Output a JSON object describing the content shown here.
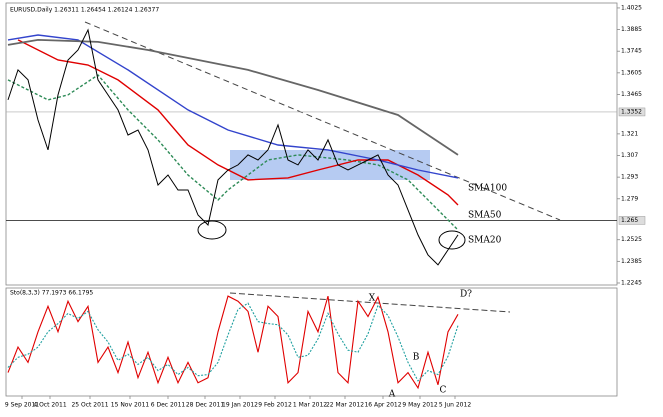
{
  "chart_data": [
    {
      "type": "line",
      "title": "EURUSD,Daily 1.26311 1.26454 1.26124 1.26377",
      "xlim": [
        0,
        60.9
      ],
      "ylim": [
        1.2232,
        1.4044
      ],
      "yticks": [
        1.4025,
        1.3885,
        1.3745,
        1.3605,
        1.3465,
        1.321,
        1.307,
        1.293,
        1.279,
        1.2525,
        1.2385,
        1.2245
      ],
      "levels": [
        1.3352,
        1.265
      ],
      "xticks": [
        {
          "value": 1.4,
          "label": "9 Sep 2011"
        },
        {
          "value": 4.2,
          "label": "4 Oct 2011"
        },
        {
          "value": 8.2,
          "label": "25 Oct 2011"
        },
        {
          "value": 12.2,
          "label": "15 Nov 2011"
        },
        {
          "value": 16,
          "label": "6 Dec 2011"
        },
        {
          "value": 19.7,
          "label": "28 Dec 2011"
        },
        {
          "value": 23.2,
          "label": "19 Jan 2012"
        },
        {
          "value": 26.7,
          "label": "9 Feb 2012"
        },
        {
          "value": 30.2,
          "label": "1 Mar 2012"
        },
        {
          "value": 33.7,
          "label": "22 Mar 2012"
        },
        {
          "value": 37.5,
          "label": "16 Apr 2012"
        },
        {
          "value": 41.2,
          "label": "9 May 2012"
        },
        {
          "value": 44.7,
          "label": "5 Jun 2012"
        }
      ],
      "price": {
        "color": "#000000",
        "values": [
          1.343,
          1.3624,
          1.356,
          1.33,
          1.3106,
          1.3462,
          1.3688,
          1.3753,
          1.3883,
          1.3559,
          1.3462,
          1.3365,
          1.3203,
          1.3235,
          1.3106,
          1.2879,
          1.2944,
          1.2847,
          1.2847,
          1.2685,
          1.262,
          1.2912,
          1.2976,
          1.3009,
          1.3074,
          1.3041,
          1.3106,
          1.3268,
          1.3041,
          1.3009,
          1.3106,
          1.3041,
          1.3171,
          1.3009,
          1.2976,
          1.3009,
          1.3041,
          1.3074,
          1.2944,
          1.2879,
          1.2718,
          1.2556,
          1.2426,
          1.2362,
          1.2459,
          1.2556
        ]
      },
      "series": [
        {
          "name": "SMA20",
          "color": "#2e8b57",
          "x": [
            0,
            4,
            6,
            9,
            12,
            15,
            18,
            21,
            22,
            24,
            26,
            29,
            34,
            37,
            40,
            43,
            45
          ],
          "values": [
            1.3559,
            1.343,
            1.3462,
            1.3591,
            1.3365,
            1.3171,
            1.2944,
            1.2782,
            1.2847,
            1.2944,
            1.3041,
            1.3074,
            1.3041,
            1.3009,
            1.2912,
            1.2718,
            1.2588
          ]
        },
        {
          "name": "SMA50",
          "color": "#e00000",
          "x": [
            1,
            5,
            8,
            11,
            15,
            18,
            21,
            24,
            28,
            31,
            35,
            38,
            41,
            44,
            45
          ],
          "values": [
            1.3818,
            1.3688,
            1.3656,
            1.3559,
            1.3365,
            1.3138,
            1.3009,
            1.2912,
            1.2925,
            1.2976,
            1.3041,
            1.3041,
            1.2944,
            1.2815,
            1.275
          ]
        },
        {
          "name": "SMA100",
          "color": "#3344cc",
          "x": [
            0,
            3,
            7,
            12,
            18,
            22,
            27,
            32,
            37,
            41,
            45
          ],
          "values": [
            1.3818,
            1.385,
            1.3818,
            1.3624,
            1.3365,
            1.3235,
            1.3138,
            1.3106,
            1.3041,
            1.2976,
            1.2925
          ]
        },
        {
          "color": "#666666",
          "x": [
            0,
            3,
            9,
            14,
            24,
            31,
            39,
            45
          ],
          "values": [
            1.3786,
            1.3818,
            1.3805,
            1.3753,
            1.3624,
            1.3494,
            1.3332,
            1.3074
          ]
        }
      ]
    },
    {
      "type": "line",
      "title": "Sto(8,3,3) 77.1973 66.1795",
      "ylim": [
        0,
        100
      ],
      "annotations": [
        "X",
        "B",
        "A",
        "C",
        "D?"
      ],
      "series": [
        {
          "color": "#e00000",
          "values": [
            20,
            45,
            30,
            60,
            85,
            60,
            90,
            70,
            85,
            30,
            45,
            20,
            50,
            15,
            40,
            10,
            35,
            10,
            30,
            10,
            15,
            60,
            95,
            90,
            80,
            40,
            85,
            75,
            10,
            20,
            80,
            60,
            95,
            20,
            10,
            90,
            75,
            94,
            60,
            10,
            20,
            5,
            40,
            8,
            60,
            77.1973
          ]
        },
        {
          "color": "#20a0a0",
          "values": [
            25,
            35,
            38,
            45,
            60,
            68,
            78,
            73,
            80,
            62,
            50,
            32,
            38,
            28,
            35,
            22,
            28,
            18,
            25,
            17,
            18,
            30,
            57,
            82,
            88,
            70,
            68,
            67,
            57,
            35,
            37,
            53,
            78,
            58,
            42,
            40,
            58,
            86,
            76,
            55,
            30,
            12,
            22,
            18,
            36,
            66.1795
          ]
        }
      ]
    }
  ]
}
